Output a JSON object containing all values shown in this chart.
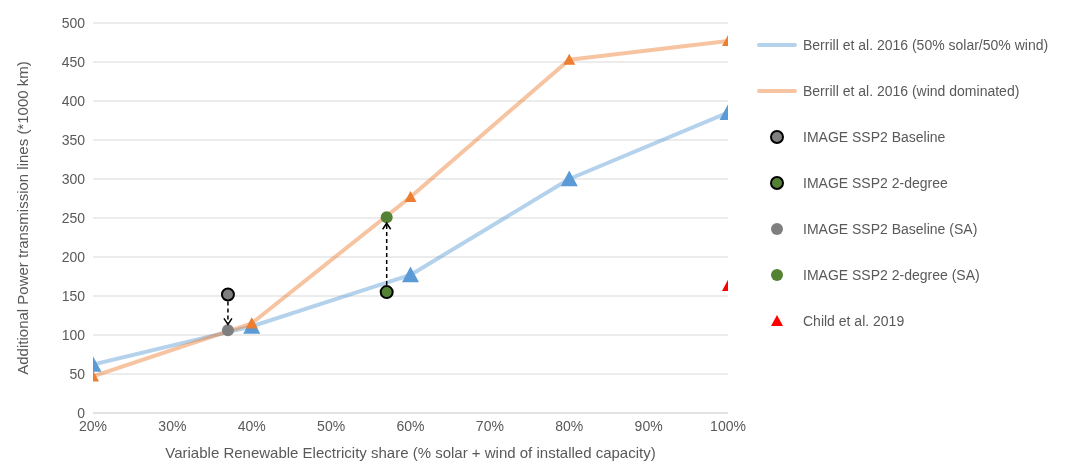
{
  "chart_data": {
    "type": "line",
    "xlabel": "Variable Renewable Electricity share (% solar + wind of installed capacity)",
    "ylabel": "Additional Power transmission lines (*1000 km)",
    "xlim": [
      20,
      100
    ],
    "xticks": [
      {
        "value": 20,
        "label": "20%"
      },
      {
        "value": 30,
        "label": "30%"
      },
      {
        "value": 40,
        "label": "40%"
      },
      {
        "value": 50,
        "label": "50%"
      },
      {
        "value": 60,
        "label": "60%"
      },
      {
        "value": 70,
        "label": "70%"
      },
      {
        "value": 80,
        "label": "80%"
      },
      {
        "value": 90,
        "label": "90%"
      },
      {
        "value": 100,
        "label": "100%"
      }
    ],
    "ylim": [
      0,
      500
    ],
    "yticks": [
      0,
      50,
      100,
      150,
      200,
      250,
      300,
      350,
      400,
      450,
      500
    ],
    "grid": "y",
    "legend": "right",
    "series": [
      {
        "name": "Berrill et al. 2016 (50% solar/50% wind)",
        "type": "line",
        "marker": "triangle",
        "color": "#5b9bd5",
        "x": [
          20,
          40,
          60,
          80,
          100
        ],
        "values": [
          62,
          111,
          177,
          300,
          385
        ]
      },
      {
        "name": "Berrill et al. 2016 (wind dominated)",
        "type": "line",
        "marker": "triangle",
        "color": "#ed7d31",
        "x": [
          20,
          40,
          60,
          80,
          100
        ],
        "values": [
          47,
          115,
          277,
          453,
          477
        ]
      },
      {
        "name": "IMAGE SSP2 Baseline",
        "type": "scatter",
        "marker": "circle",
        "color": "#7f7f7f",
        "x": [
          37
        ],
        "values": [
          152
        ]
      },
      {
        "name": "IMAGE SSP2 2-degree",
        "type": "scatter",
        "marker": "circle",
        "color": "#548235",
        "x": [
          57
        ],
        "values": [
          155
        ]
      },
      {
        "name": "IMAGE SSP2 Baseline (SA)",
        "type": "scatter",
        "marker": "circle",
        "color": "#7f7f7f",
        "x": [
          37
        ],
        "values": [
          106
        ]
      },
      {
        "name": "IMAGE SSP2 2-degree (SA)",
        "type": "scatter",
        "marker": "circle",
        "color": "#548235",
        "x": [
          57
        ],
        "values": [
          251
        ]
      },
      {
        "name": "Child et al. 2019",
        "type": "scatter",
        "marker": "triangle",
        "color": "#ff0000",
        "x": [
          100
        ],
        "values": [
          163
        ]
      }
    ]
  }
}
